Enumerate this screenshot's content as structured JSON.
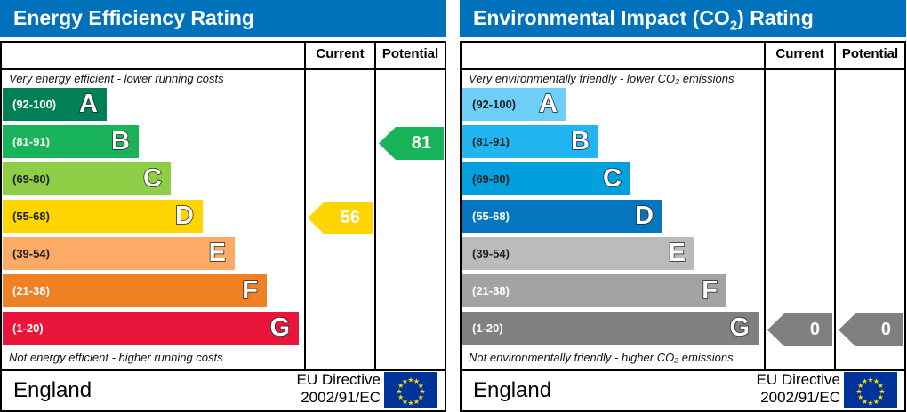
{
  "panels": [
    {
      "title": "Energy Efficiency Rating",
      "title_sub": "",
      "title_end": "",
      "col_current": "Current",
      "col_potential": "Potential",
      "top_note": "Very energy efficient - lower running costs",
      "bottom_note": "Not energy efficient - higher running costs",
      "bands": [
        {
          "range": "(92-100)",
          "letter": "A",
          "color": "#008054"
        },
        {
          "range": "(81-91)",
          "letter": "B",
          "color": "#19b459"
        },
        {
          "range": "(69-80)",
          "letter": "C",
          "color": "#8dce46"
        },
        {
          "range": "(55-68)",
          "letter": "D",
          "color": "#ffd500"
        },
        {
          "range": "(39-54)",
          "letter": "E",
          "color": "#fcaa65"
        },
        {
          "range": "(21-38)",
          "letter": "F",
          "color": "#ef8023"
        },
        {
          "range": "(1-20)",
          "letter": "G",
          "color": "#e9153b"
        }
      ],
      "current": {
        "value": "56",
        "band": "D",
        "color": "#ffd500"
      },
      "potential": {
        "value": "81",
        "band": "B",
        "color": "#19b459"
      },
      "country": "England",
      "directive_line1": "EU Directive",
      "directive_line2": "2002/91/EC"
    },
    {
      "title": "Environmental Impact (CO",
      "title_sub": "2",
      "title_end": ") Rating",
      "col_current": "Current",
      "col_potential": "Potential",
      "top_note": "Very environmentally friendly - lower CO₂ emissions",
      "bottom_note": "Not environmentally friendly - higher CO₂ emissions",
      "bands": [
        {
          "range": "(92-100)",
          "letter": "A",
          "color": "#6ecff6"
        },
        {
          "range": "(81-91)",
          "letter": "B",
          "color": "#21b6f2"
        },
        {
          "range": "(69-80)",
          "letter": "C",
          "color": "#00a0de"
        },
        {
          "range": "(55-68)",
          "letter": "D",
          "color": "#0575bf"
        },
        {
          "range": "(39-54)",
          "letter": "E",
          "color": "#bbbbbb"
        },
        {
          "range": "(21-38)",
          "letter": "F",
          "color": "#a3a3a3"
        },
        {
          "range": "(1-20)",
          "letter": "G",
          "color": "#808080"
        }
      ],
      "current": {
        "value": "0",
        "band": "G",
        "color": "#808080"
      },
      "potential": {
        "value": "0",
        "band": "G",
        "color": "#808080"
      },
      "country": "England",
      "directive_line1": "EU Directive",
      "directive_line2": "2002/91/EC"
    }
  ]
}
